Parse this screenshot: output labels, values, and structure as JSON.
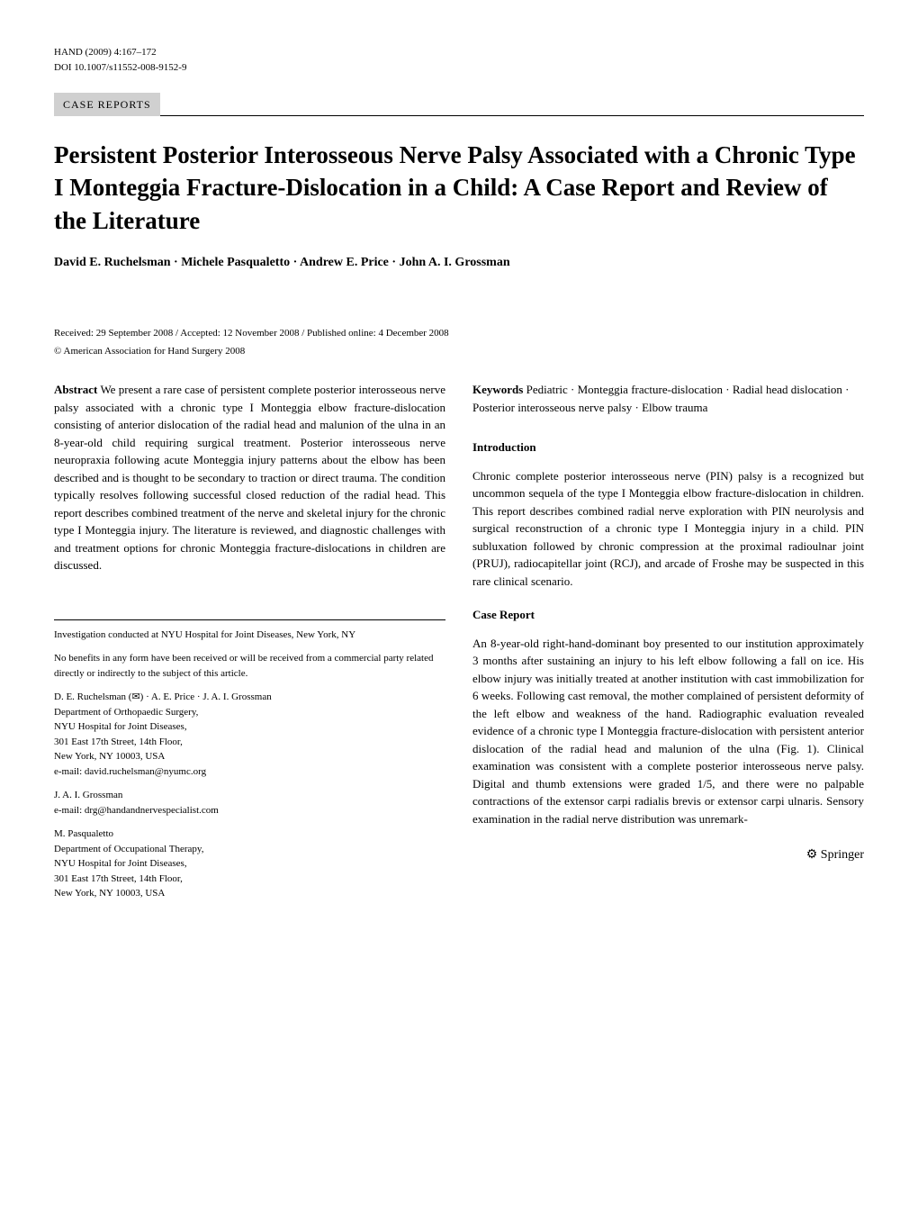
{
  "header": {
    "journal": "HAND (2009) 4:167–172",
    "doi": "DOI 10.1007/s11552-008-9152-9"
  },
  "section_label": "CASE REPORTS",
  "title": "Persistent Posterior Interosseous Nerve Palsy Associated with a Chronic Type I Monteggia Fracture-Dislocation in a Child: A Case Report and Review of the Literature",
  "authors": "David E. Ruchelsman · Michele Pasqualetto · Andrew E. Price · John A. I. Grossman",
  "dates": "Received: 29 September 2008 / Accepted: 12 November 2008 / Published online: 4 December 2008",
  "copyright": "© American Association for Hand Surgery 2008",
  "abstract": {
    "label": "Abstract",
    "text": " We present a rare case of persistent complete posterior interosseous nerve palsy associated with a chronic type I Monteggia elbow fracture-dislocation consisting of anterior dislocation of the radial head and malunion of the ulna in an 8-year-old child requiring surgical treatment. Posterior interosseous nerve neuropraxia following acute Monteggia injury patterns about the elbow has been described and is thought to be secondary to traction or direct trauma. The condition typically resolves following successful closed reduction of the radial head. This report describes combined treatment of the nerve and skeletal injury for the chronic type I Monteggia injury. The literature is reviewed, and diagnostic challenges with and treatment options for chronic Monteggia fracture-dislocations in children are discussed."
  },
  "footnotes": {
    "investigation": "Investigation conducted at NYU Hospital for Joint Diseases, New York, NY",
    "benefits": "No benefits in any form have been received or will be received from a commercial party related directly or indirectly to the subject of this article."
  },
  "affiliations": {
    "block1_authors": "D. E. Ruchelsman (✉) · A. E. Price · J. A. I. Grossman",
    "block1_dept": "Department of Orthopaedic Surgery,",
    "block1_inst": "NYU Hospital for Joint Diseases,",
    "block1_addr": "301 East 17th Street, 14th Floor,",
    "block1_city": "New York, NY 10003, USA",
    "block1_email": "e-mail: david.ruchelsman@nyumc.org",
    "block2_author": "J. A. I. Grossman",
    "block2_email": "e-mail: drg@handandnervespecialist.com",
    "block3_author": "M. Pasqualetto",
    "block3_dept": "Department of Occupational Therapy,",
    "block3_inst": "NYU Hospital for Joint Diseases,",
    "block3_addr": "301 East 17th Street, 14th Floor,",
    "block3_city": "New York, NY 10003, USA"
  },
  "keywords": {
    "label": "Keywords",
    "text": " Pediatric · Monteggia fracture-dislocation · Radial head dislocation · Posterior interosseous nerve palsy · Elbow trauma"
  },
  "intro": {
    "heading": "Introduction",
    "text": "Chronic complete posterior interosseous nerve (PIN) palsy is a recognized but uncommon sequela of the type I Monteggia elbow fracture-dislocation in children. This report describes combined radial nerve exploration with PIN neurolysis and surgical reconstruction of a chronic type I Monteggia injury in a child. PIN subluxation followed by chronic compression at the proximal radioulnar joint (PRUJ), radiocapitellar joint (RCJ), and arcade of Froshe may be suspected in this rare clinical scenario."
  },
  "case": {
    "heading": "Case Report",
    "text": "An 8-year-old right-hand-dominant boy presented to our institution approximately 3 months after sustaining an injury to his left elbow following a fall on ice. His elbow injury was initially treated at another institution with cast immobilization for 6 weeks. Following cast removal, the mother complained of persistent deformity of the left elbow and weakness of the hand. Radiographic evaluation revealed evidence of a chronic type I Monteggia fracture-dislocation with persistent anterior dislocation of the radial head and malunion of the ulna (Fig. 1). Clinical examination was consistent with a complete posterior interosseous nerve palsy. Digital and thumb extensions were graded 1/5, and there were no palpable contractions of the extensor carpi radialis brevis or extensor carpi ulnaris. Sensory examination in the radial nerve distribution was unremark-"
  },
  "logo": "⚙ Springer"
}
